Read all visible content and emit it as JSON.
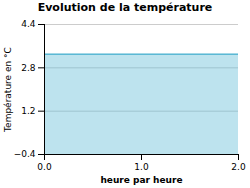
{
  "chart_data": {
    "type": "area",
    "title": "Evolution de la température",
    "xlabel": "heure par heure",
    "ylabel": "Température en °C",
    "x": [
      0,
      2
    ],
    "series": [
      {
        "color": "#5bb8d4",
        "values": [
          3.3,
          3.3
        ]
      }
    ],
    "xlim": [
      0,
      2
    ],
    "xticks": [
      0,
      1,
      2
    ],
    "ylim": [
      -0.4,
      4.4
    ],
    "yticks": [
      -0.4,
      1.2,
      2.8,
      4.4
    ],
    "grid": true
  }
}
